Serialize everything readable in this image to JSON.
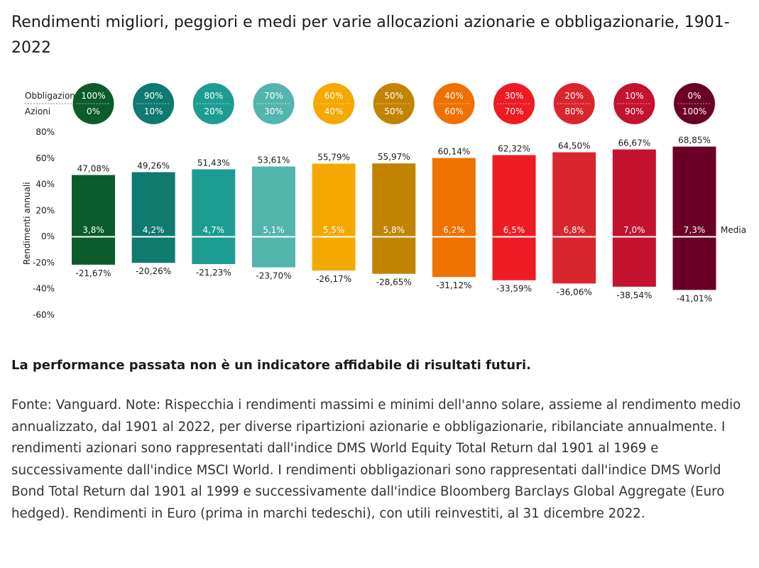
{
  "title": "Rendimenti migliori, peggiori e medi per varie allocazioni azionarie e obbligazionarie, 1901-2022",
  "chart_data": {
    "type": "bar",
    "row_labels": {
      "bonds": "Obbligazioni",
      "stocks": "Azioni"
    },
    "bond_pct": [
      "100%",
      "90%",
      "80%",
      "70%",
      "60%",
      "50%",
      "40%",
      "30%",
      "20%",
      "10%",
      "0%"
    ],
    "stock_pct": [
      "0%",
      "10%",
      "20%",
      "30%",
      "40%",
      "50%",
      "60%",
      "70%",
      "80%",
      "90%",
      "100%"
    ],
    "series": [
      {
        "name": "max",
        "values": [
          47.08,
          49.26,
          51.43,
          53.61,
          55.79,
          55.97,
          60.14,
          62.32,
          64.5,
          66.67,
          68.85
        ]
      },
      {
        "name": "min",
        "values": [
          -21.67,
          -20.26,
          -21.23,
          -23.7,
          -26.17,
          -28.65,
          -31.12,
          -33.59,
          -36.06,
          -38.54,
          -41.01
        ]
      },
      {
        "name": "Media",
        "values": [
          3.8,
          4.2,
          4.7,
          5.1,
          5.5,
          5.8,
          6.2,
          6.5,
          6.8,
          7.0,
          7.3
        ]
      }
    ],
    "max_labels": [
      "47,08%",
      "49,26%",
      "51,43%",
      "53,61%",
      "55,79%",
      "55,97%",
      "60,14%",
      "62,32%",
      "64,50%",
      "66,67%",
      "68,85%"
    ],
    "min_labels": [
      "-21,67%",
      "-20,26%",
      "-21,23%",
      "-23,70%",
      "-26,17%",
      "-28,65%",
      "-31,12%",
      "-33,59%",
      "-36,06%",
      "-38,54%",
      "-41,01%"
    ],
    "mean_labels": [
      "3,8%",
      "4,2%",
      "4,7%",
      "5,1%",
      "5,5%",
      "5,8%",
      "6,2%",
      "6,5%",
      "6,8%",
      "7,0%",
      "7,3%"
    ],
    "mean_legend": "Media",
    "ylabel": "Rendimenti annuali",
    "ylim": [
      -60,
      80
    ],
    "yticks": [
      80,
      60,
      40,
      20,
      0,
      -20,
      -40,
      -60
    ],
    "ytick_labels": [
      "80%",
      "60%",
      "40%",
      "20%",
      "0%",
      "-20%",
      "-40%",
      "-60%"
    ],
    "colors": [
      "#0b5c2a",
      "#0f7a6f",
      "#1d9d91",
      "#52b5ad",
      "#f5a800",
      "#c18300",
      "#ef7100",
      "#ee1b23",
      "#d9262e",
      "#c4122f",
      "#6b0026"
    ]
  },
  "disclaimer": "La performance passata non è un indicatore affidabile di risultati futuri.",
  "source_note": "Fonte: Vanguard. Note: Rispecchia i rendimenti massimi e minimi dell'anno solare, assieme al rendimento medio annualizzato, dal 1901 al 2022, per diverse ripartizioni azionarie e obbligazionarie, ribilanciate annualmente. I rendimenti azionari sono rappresentati dall'indice DMS World Equity Total Return dal 1901 al 1969 e successivamente dall'indice MSCI World. I rendimenti obbligazionari sono rappresentati dall'indice DMS World Bond Total Return dal 1901 al 1999 e successivamente dall'indice Bloomberg Barclays Global Aggregate (Euro hedged). Rendimenti in Euro (prima in marchi tedeschi), con utili reinvestiti, al 31 dicembre 2022."
}
